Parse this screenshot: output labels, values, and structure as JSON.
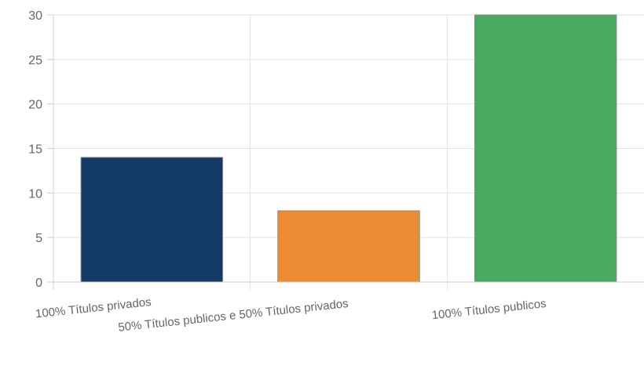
{
  "chart_data": {
    "type": "bar",
    "title": "",
    "xlabel": "",
    "ylabel": "",
    "categories": [
      "100% Títulos privados",
      "50% Títulos publicos e 50% Títulos privados",
      "100% Títulos publicos"
    ],
    "values": [
      14,
      8,
      30
    ],
    "colors": [
      "#133B65",
      "#EE8C33",
      "#47AA60"
    ],
    "ylim": [
      0,
      30
    ],
    "yticks": [
      0,
      5,
      10,
      15,
      20,
      25,
      30
    ],
    "grid": true,
    "legend": "none"
  }
}
